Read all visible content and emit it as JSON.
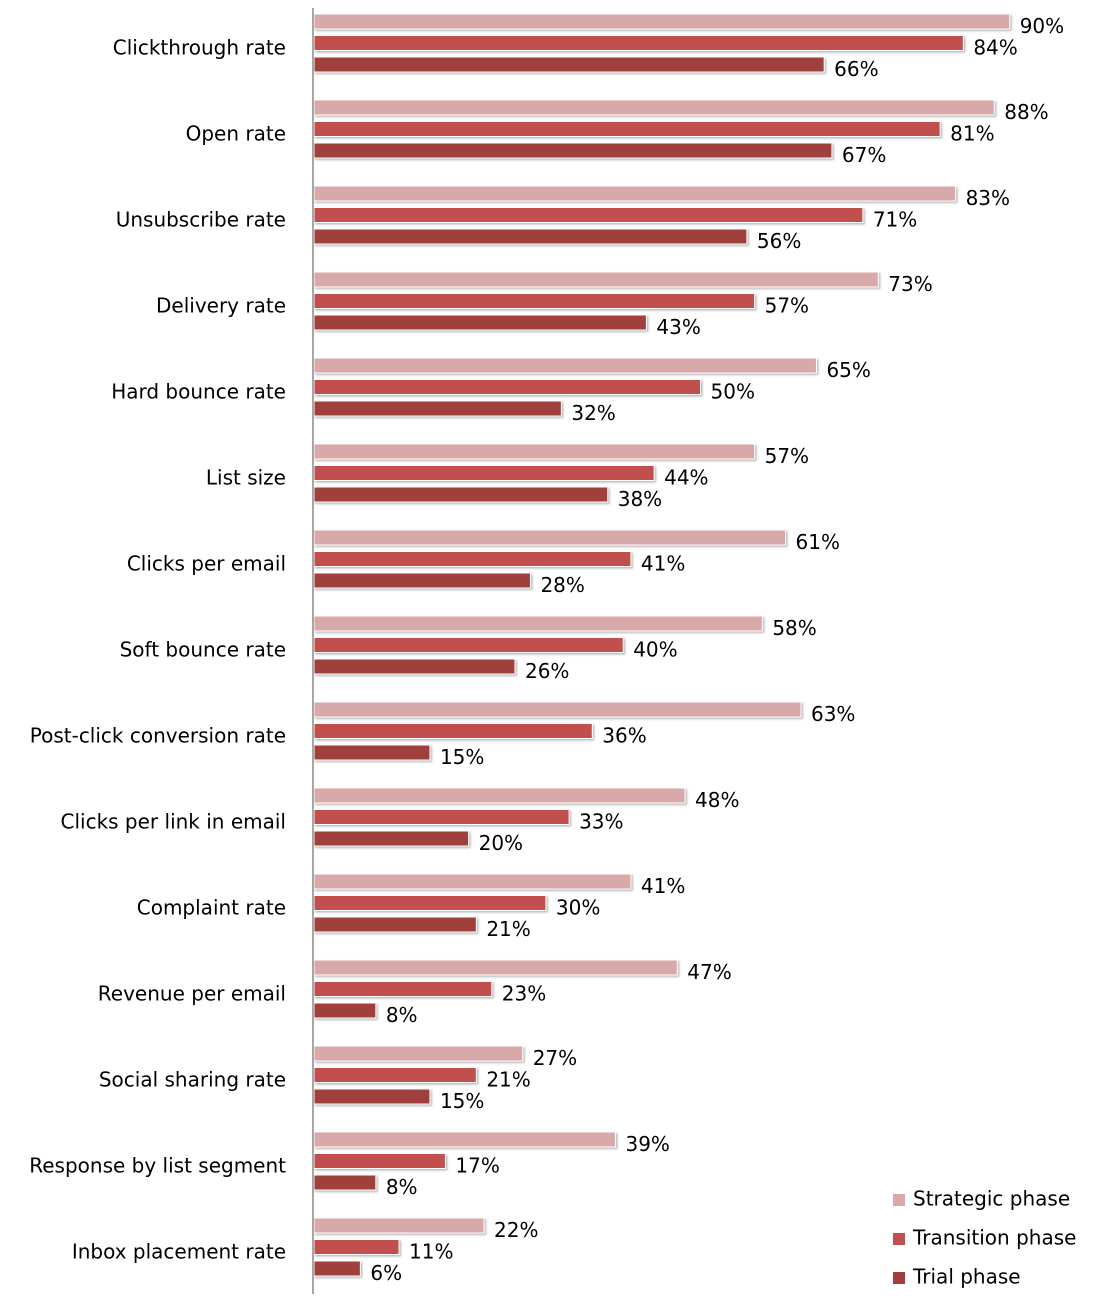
{
  "chart_data": {
    "type": "bar",
    "orientation": "horizontal",
    "categories": [
      "Clickthrough rate",
      "Open rate",
      "Unsubscribe rate",
      "Delivery rate",
      "Hard bounce rate",
      "List size",
      "Clicks per email",
      "Soft bounce rate",
      "Post-click conversion rate",
      "Clicks per link in email",
      "Complaint rate",
      "Revenue per email",
      "Social sharing rate",
      "Response by list segment",
      "Inbox placement rate"
    ],
    "series": [
      {
        "name": "Strategic phase",
        "color": "#d9a9a9",
        "values": [
          90,
          88,
          83,
          73,
          65,
          57,
          61,
          58,
          63,
          48,
          41,
          47,
          27,
          39,
          22
        ],
        "value_labels": [
          "90%",
          "88%",
          "83%",
          "73%",
          "65%",
          "57%",
          "61%",
          "58%",
          "63%",
          "48%",
          "41%",
          "47%",
          "27%",
          "39%",
          "22%"
        ]
      },
      {
        "name": "Transition phase",
        "color": "#c0504d",
        "values": [
          84,
          81,
          71,
          57,
          50,
          44,
          41,
          40,
          36,
          33,
          30,
          23,
          21,
          17,
          11
        ],
        "value_labels": [
          "84%",
          "81%",
          "71%",
          "57%",
          "50%",
          "44%",
          "41%",
          "40%",
          "36%",
          "33%",
          "30%",
          "23%",
          "21%",
          "17%",
          "11%"
        ]
      },
      {
        "name": "Trial phase",
        "color": "#a0403e",
        "values": [
          66,
          67,
          56,
          43,
          32,
          38,
          28,
          26,
          15,
          20,
          21,
          8,
          15,
          8,
          6
        ],
        "value_labels": [
          "66%",
          "67%",
          "56%",
          "43%",
          "32%",
          "38%",
          "28%",
          "26%",
          "15%",
          "20%",
          "21%",
          "8%",
          "15%",
          "8%",
          "6%"
        ]
      }
    ],
    "xlim": [
      0,
      100
    ],
    "legend": "bottom-right"
  }
}
